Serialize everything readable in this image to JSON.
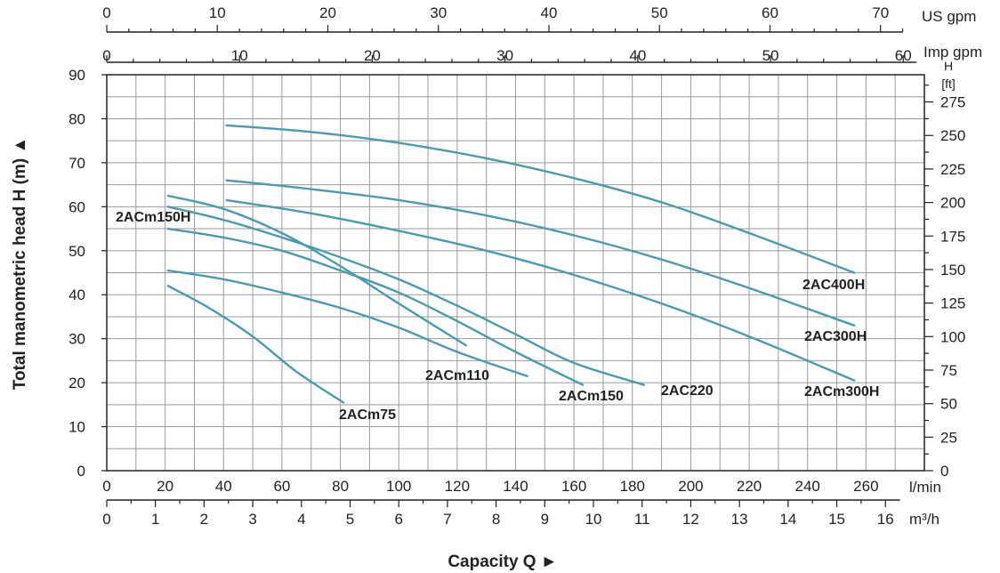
{
  "chart_data": {
    "type": "line",
    "ylabel": "Total manometric head H (m) ▲",
    "xlabel": "Capacity Q ►",
    "x_unit": "l/min",
    "y_unit": "",
    "xlim": [
      0,
      280
    ],
    "ylim": [
      0,
      90
    ],
    "x_ticks": [
      0,
      20,
      40,
      60,
      80,
      100,
      120,
      140,
      160,
      180,
      200,
      220,
      240,
      260
    ],
    "y_ticks": [
      0,
      10,
      20,
      30,
      40,
      50,
      60,
      70,
      80,
      90
    ],
    "grid": true,
    "secondary_axes": {
      "m3h": {
        "unit": "m³/h",
        "ticks": [
          0,
          1,
          2,
          3,
          4,
          5,
          6,
          7,
          8,
          9,
          10,
          11,
          12,
          13,
          14,
          15,
          16
        ]
      },
      "us_gpm": {
        "unit": "US gpm",
        "ticks": [
          0,
          10,
          20,
          30,
          40,
          50,
          60,
          70
        ]
      },
      "imp_gpm": {
        "unit": "Imp gpm",
        "ticks": [
          0,
          10,
          20,
          30,
          40,
          50,
          60
        ]
      },
      "ft": {
        "unit_line1": "H",
        "unit_line2": "[ft]",
        "ticks": [
          0,
          25,
          50,
          75,
          100,
          125,
          150,
          175,
          200,
          225,
          250,
          275
        ]
      }
    },
    "color": "#4a9bb0",
    "series": [
      {
        "name": "2ACm75",
        "x": [
          21,
          35,
          50,
          65,
          81
        ],
        "y": [
          42,
          37,
          30.5,
          22.5,
          15.5
        ]
      },
      {
        "name": "2ACm110",
        "x": [
          21,
          40,
          60,
          80,
          100,
          120,
          144
        ],
        "y": [
          45.5,
          43.5,
          40.5,
          37,
          32.5,
          27,
          21.5
        ]
      },
      {
        "name": "2ACm150H",
        "x": [
          21,
          40,
          60,
          80,
          100,
          123
        ],
        "y": [
          62.5,
          59.5,
          54,
          46.5,
          38,
          28.5
        ]
      },
      {
        "name": "2ACm150",
        "x": [
          21,
          40,
          60,
          80,
          100,
          120,
          140,
          163
        ],
        "y": [
          55,
          53,
          50,
          45.5,
          40.5,
          34,
          27,
          19.5
        ]
      },
      {
        "name": "2AC220",
        "x": [
          21,
          40,
          60,
          80,
          100,
          120,
          140,
          160,
          184
        ],
        "y": [
          60,
          57,
          53,
          48.5,
          43.5,
          37.5,
          31,
          24.5,
          19.5
        ]
      },
      {
        "name": "2ACm300H",
        "x": [
          41,
          70,
          100,
          130,
          160,
          190,
          220,
          256
        ],
        "y": [
          61.5,
          58.5,
          54.5,
          50,
          44.5,
          38,
          30.5,
          20.5
        ]
      },
      {
        "name": "2AC300H",
        "x": [
          41,
          70,
          100,
          130,
          160,
          190,
          220,
          256
        ],
        "y": [
          66,
          64,
          61.5,
          58,
          53.5,
          48,
          41.5,
          33
        ]
      },
      {
        "name": "2AC400H",
        "x": [
          41,
          70,
          100,
          130,
          160,
          190,
          220,
          256
        ],
        "y": [
          78.5,
          77,
          74.5,
          71,
          66.5,
          61,
          54,
          45
        ]
      }
    ]
  }
}
